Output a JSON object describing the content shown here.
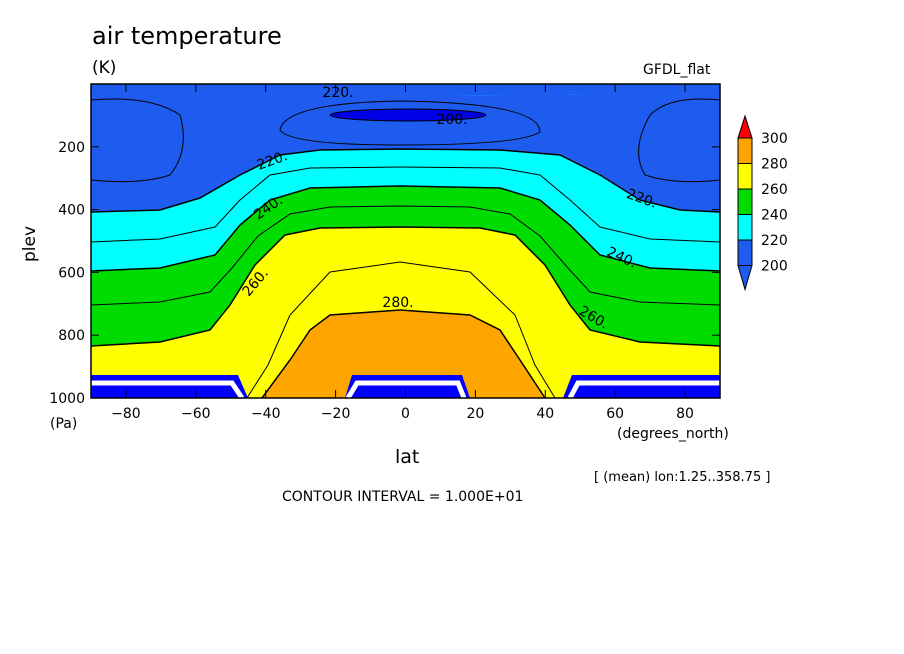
{
  "title": "air temperature",
  "units": "(K)",
  "dataset": "GFDL_flat",
  "ylabel": "plev",
  "yunit": "(Pa)",
  "xlabel": "lat",
  "xunit": "(degrees_north)",
  "mean_note": "[ (mean) lon:1.25..358.75 ]",
  "contour_interval": "CONTOUR INTERVAL = 1.000E+01",
  "colors": {
    "below_200": "#1e5cf0",
    "200_220": "#1e5cf0",
    "220_240": "#00ffff",
    "240_260": "#00dc00",
    "260_280": "#ffff00",
    "280_300": "#ffa500",
    "above_300": "#ff0000",
    "mask": "#0000ff",
    "deep_blue": "#0000e6"
  },
  "chart_data": {
    "type": "contour",
    "title": "air temperature",
    "units": "K",
    "xlabel": "lat",
    "ylabel": "plev",
    "x_range": [
      -90,
      90
    ],
    "y_range": [
      1000,
      0
    ],
    "x_ticks": [
      -80,
      -60,
      -40,
      -20,
      0,
      20,
      40,
      60,
      80
    ],
    "y_ticks": [
      200,
      400,
      600,
      800,
      1000
    ],
    "contour_interval": 10,
    "contour_labels": [
      "200.",
      "220.",
      "220.",
      "220.",
      "240.",
      "240.",
      "260.",
      "260.",
      "280."
    ],
    "colorbar": {
      "levels": [
        200,
        220,
        240,
        260,
        280,
        300
      ],
      "tick_labels": [
        "200",
        "220",
        "240",
        "260",
        "280",
        "300"
      ]
    }
  }
}
